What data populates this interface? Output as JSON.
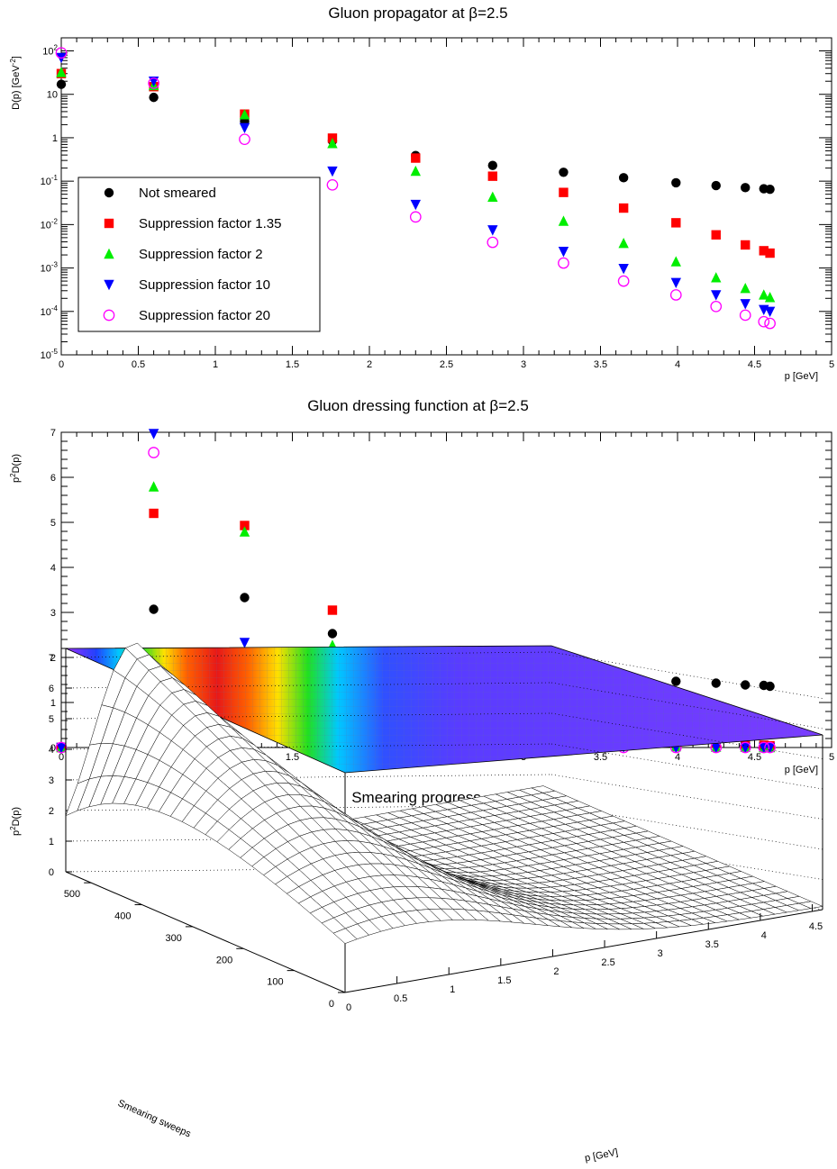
{
  "chart_data": [
    {
      "type": "scatter",
      "title": "Gluon propagator at β=2.5",
      "xlabel": "p [GeV]",
      "ylabel": "D(p) [GeV⁻²]",
      "ylabel_base": "D(p) [GeV",
      "ylabel_sup": "-2",
      "ylabel_end": "]",
      "xlim": [
        0,
        5
      ],
      "ylim": [
        1e-05,
        200
      ],
      "log_y": true,
      "grid": false,
      "legend_position": "left",
      "x_ticks": [
        "0",
        "0.5",
        "1",
        "1.5",
        "2",
        "2.5",
        "3",
        "3.5",
        "4",
        "4.5",
        "5"
      ],
      "y_ticks": [
        {
          "base": "10",
          "exp": "-5",
          "value": 1e-05
        },
        {
          "base": "10",
          "exp": "-4",
          "value": 0.0001
        },
        {
          "base": "10",
          "exp": "-3",
          "value": 0.001
        },
        {
          "base": "10",
          "exp": "-2",
          "value": 0.01
        },
        {
          "base": "10",
          "exp": "-1",
          "value": 0.1
        },
        {
          "base": "1",
          "exp": "",
          "value": 1
        },
        {
          "base": "10",
          "exp": "",
          "value": 10
        },
        {
          "base": "10",
          "exp": "2",
          "value": 100
        }
      ],
      "x": [
        0.0,
        0.6,
        1.19,
        1.76,
        2.3,
        2.8,
        3.26,
        3.65,
        3.99,
        4.25,
        4.44,
        4.56,
        4.6
      ],
      "series": [
        {
          "name": "Not smeared",
          "marker": "circle",
          "color": "#000000",
          "values": [
            17,
            8.5,
            2.4,
            0.85,
            0.39,
            0.23,
            0.16,
            0.12,
            0.092,
            0.079,
            0.071,
            0.067,
            0.065
          ]
        },
        {
          "name": "Suppression factor 1.35",
          "marker": "square",
          "color": "#ff0000",
          "values": [
            30,
            15,
            3.5,
            0.98,
            0.34,
            0.13,
            0.055,
            0.024,
            0.011,
            0.0058,
            0.0034,
            0.0025,
            0.0022
          ]
        },
        {
          "name": "Suppression factor 2",
          "marker": "triangle-up",
          "color": "#00ee00",
          "values": [
            32,
            16,
            3.4,
            0.74,
            0.17,
            0.043,
            0.012,
            0.0037,
            0.0014,
            0.0006,
            0.00034,
            0.00024,
            0.00021
          ]
        },
        {
          "name": "Suppression factor 10",
          "marker": "triangle-down",
          "color": "#0000ff",
          "values": [
            70,
            20,
            1.7,
            0.17,
            0.029,
            0.0075,
            0.0024,
            0.00097,
            0.00046,
            0.00024,
            0.00015,
            0.00011,
            0.0001
          ]
        },
        {
          "name": "Suppression factor 20",
          "marker": "open-circle",
          "color": "#ff00ff",
          "values": [
            90,
            18,
            0.92,
            0.082,
            0.015,
            0.0039,
            0.0013,
            0.0005,
            0.00024,
            0.00013,
            8.2e-05,
            5.8e-05,
            5.3e-05
          ]
        }
      ]
    },
    {
      "type": "scatter",
      "title": "Gluon dressing function at β=2.5",
      "xlabel": "p [GeV]",
      "ylabel": "p²D(p)",
      "ylabel_base": "p",
      "ylabel_sup": "2",
      "ylabel_end": "D(p)",
      "xlim": [
        0,
        5
      ],
      "ylim": [
        0,
        7
      ],
      "log_y": false,
      "grid": false,
      "x_ticks": [
        "0",
        "0.5",
        "1",
        "1.5",
        "2",
        "2.5",
        "3",
        "3.5",
        "4",
        "4.5",
        "5"
      ],
      "y_ticks": [
        "0",
        "1",
        "2",
        "3",
        "4",
        "5",
        "6",
        "7"
      ],
      "x": [
        0.0,
        0.6,
        1.19,
        1.76,
        2.3,
        2.8,
        3.26,
        3.65,
        3.99,
        4.25,
        4.44,
        4.56,
        4.6
      ],
      "series": [
        {
          "name": "Not smeared",
          "marker": "circle",
          "color": "#000000",
          "values": [
            0,
            3.07,
            3.33,
            2.53,
            2.07,
            1.79,
            1.65,
            1.55,
            1.47,
            1.43,
            1.39,
            1.38,
            1.36
          ]
        },
        {
          "name": "Suppression factor 1.35",
          "marker": "square",
          "color": "#ff0000",
          "values": [
            0,
            5.2,
            4.93,
            3.05,
            1.79,
            1.03,
            0.58,
            0.32,
            0.18,
            0.1,
            0.07,
            0.05,
            0.04
          ]
        },
        {
          "name": "Suppression factor 2",
          "marker": "triangle-up",
          "color": "#00ee00",
          "values": [
            0,
            5.79,
            4.79,
            2.27,
            0.95,
            0.35,
            0.12,
            0.05,
            0.02,
            0.01,
            0.01,
            0.0,
            0.0
          ]
        },
        {
          "name": "Suppression factor 10",
          "marker": "triangle-down",
          "color": "#0000ff",
          "values": [
            0,
            6.97,
            2.33,
            0.53,
            0.15,
            0.05,
            0.02,
            0.01,
            0.0,
            0.0,
            0.0,
            0.0,
            0.0
          ]
        },
        {
          "name": "Suppression factor 20",
          "marker": "open-circle",
          "color": "#ff00ff",
          "values": [
            0,
            6.55,
            1.27,
            0.25,
            0.07,
            0.02,
            0.01,
            0.0,
            0.0,
            0.0,
            0.0,
            0.0,
            0.0
          ]
        }
      ]
    },
    {
      "type": "surface",
      "title": "Smearing progress",
      "xlabel": "p [GeV]",
      "ylabel": "Smearing sweeps",
      "zlabel": "p²D(p)",
      "zlabel_base": "p",
      "zlabel_sup": "2",
      "zlabel_end": "D(p)",
      "xlim": [
        0,
        4.6
      ],
      "ylim": [
        0,
        550
      ],
      "zlim": [
        0,
        7.3
      ],
      "x_ticks": [
        "0",
        "0.5",
        "1",
        "1.5",
        "2",
        "2.5",
        "3",
        "3.5",
        "4",
        "4.5"
      ],
      "y_ticks": [
        "0",
        "100",
        "200",
        "300",
        "400",
        "500"
      ],
      "z_ticks": [
        "0",
        "1",
        "2",
        "3",
        "4",
        "5",
        "6",
        "7"
      ],
      "colormap_projection": "top",
      "description_values": {
        "peak_p_range": [
          0.3,
          1.0
        ],
        "peak_height": 7.0,
        "tail_value_at_high_p": 0.0
      }
    }
  ]
}
